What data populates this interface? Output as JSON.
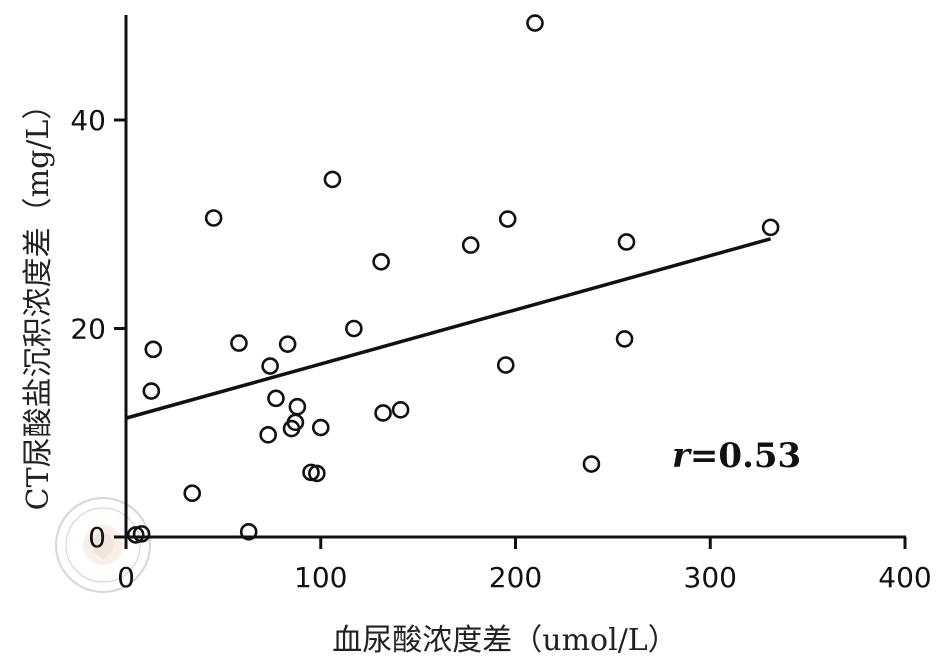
{
  "chart_data": {
    "type": "scatter",
    "xlabel": "血尿酸浓度差（umol/L）",
    "ylabel": "CT尿酸盐沉积浓度差（mg/L）",
    "xlim": [
      0,
      400
    ],
    "ylim": [
      -1,
      50
    ],
    "xticks": [
      0,
      100,
      200,
      300,
      400
    ],
    "yticks": [
      0,
      20,
      40
    ],
    "grid": false,
    "series": [
      {
        "points": [
          [
            5,
            0.2
          ],
          [
            8,
            0.3
          ],
          [
            13,
            14
          ],
          [
            14,
            18
          ],
          [
            34,
            4.2
          ],
          [
            45,
            30.6
          ],
          [
            58,
            18.6
          ],
          [
            63,
            0.5
          ],
          [
            73,
            9.8
          ],
          [
            74,
            16.4
          ],
          [
            77,
            13.3
          ],
          [
            83,
            18.5
          ],
          [
            85,
            10.4
          ],
          [
            87,
            11
          ],
          [
            88,
            12.5
          ],
          [
            95,
            6.2
          ],
          [
            98,
            6.1
          ],
          [
            100,
            10.5
          ],
          [
            106,
            34.3
          ],
          [
            117,
            20
          ],
          [
            131,
            26.4
          ],
          [
            132,
            11.9
          ],
          [
            141,
            12.2
          ],
          [
            177,
            28
          ],
          [
            195,
            16.5
          ],
          [
            196,
            30.5
          ],
          [
            210,
            49.3
          ],
          [
            239,
            7
          ],
          [
            256,
            19
          ],
          [
            257,
            28.3
          ],
          [
            331,
            29.7
          ]
        ]
      }
    ],
    "fit_line": {
      "x": [
        0,
        331
      ],
      "y": [
        11.4,
        28.6
      ]
    },
    "annotation": {
      "r_label": "r",
      "value_text": "=0.53"
    }
  },
  "watermark": {
    "icon": "chinese-medical-association-seal"
  }
}
